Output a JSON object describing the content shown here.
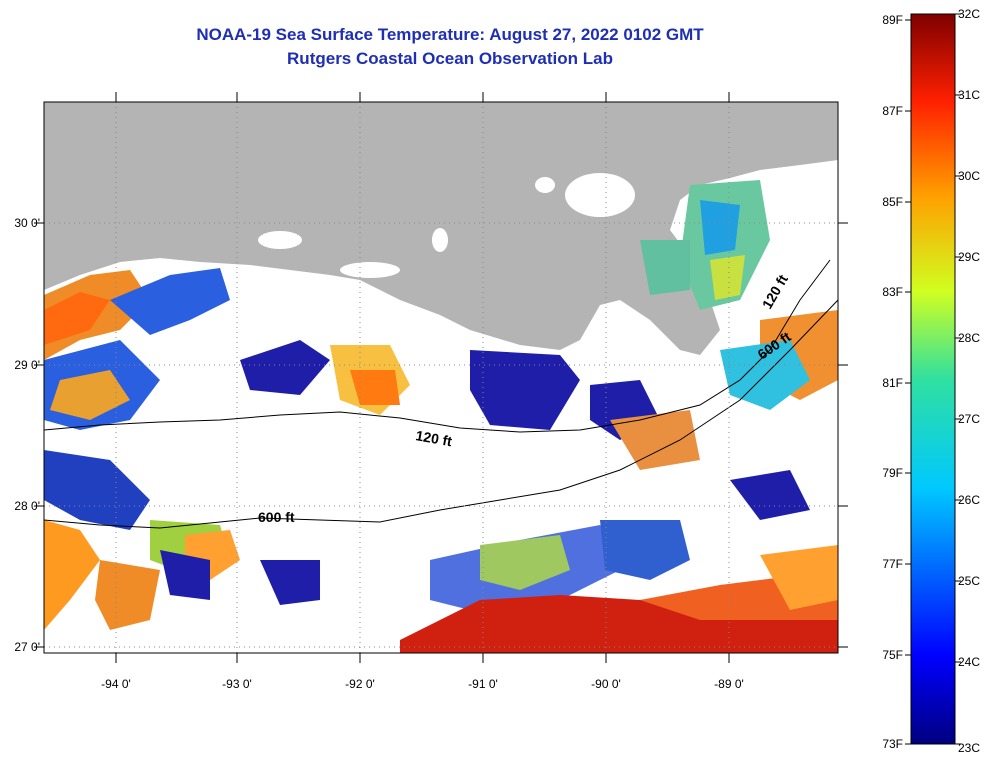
{
  "title": "NOAA-19 Sea Surface Temperature:  August 27, 2022 0102 GMT",
  "subtitle": "Rutgers Coastal Ocean Observation Lab",
  "map": {
    "x_ticks": [
      "-94 0'",
      "-93 0'",
      "-92 0'",
      "-91 0'",
      "-90 0'",
      "-89 0'"
    ],
    "y_ticks": [
      "30 0'",
      "29 0'",
      "28 0'",
      "27 0'"
    ],
    "contours": [
      "120 ft",
      "600 ft",
      "600 ft",
      "120 ft"
    ],
    "land_color": "#b4b4b4",
    "cloud_color": "#ffffff"
  },
  "colorbar": {
    "fahrenheit": [
      "89F",
      "87F",
      "85F",
      "83F",
      "81F",
      "79F",
      "77F",
      "75F",
      "73F"
    ],
    "celsius": [
      "32C",
      "31C",
      "30C",
      "29C",
      "28C",
      "27C",
      "26C",
      "25C",
      "24C",
      "23C"
    ],
    "colors": [
      "#00007f",
      "#0000ff",
      "#007fff",
      "#00ffff",
      "#7fff7f",
      "#ffff00",
      "#ff7f00",
      "#ff0000",
      "#7f0000"
    ]
  }
}
